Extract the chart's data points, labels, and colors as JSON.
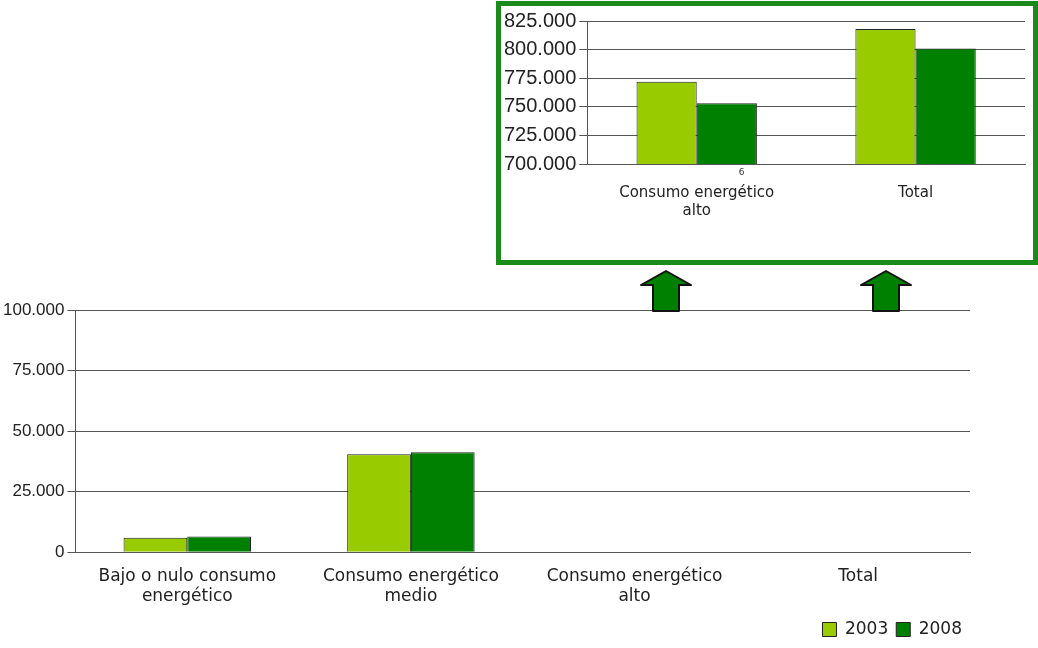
{
  "chart_data": [
    {
      "type": "bar",
      "categories": [
        "Bajo o nulo consumo energético",
        "Consumo energético medio",
        "Consumo energético alto",
        "Total"
      ],
      "series": [
        {
          "name": "2003",
          "color": "#99cc00",
          "values": [
            6000,
            40400,
            null,
            null
          ]
        },
        {
          "name": "2008",
          "color": "#008000",
          "values": [
            6500,
            41300,
            null,
            null
          ]
        }
      ],
      "ylim": [
        0,
        100000
      ],
      "yticks": [
        0,
        {
          "value": 25000,
          "label": "25.000"
        },
        {
          "value": 50000,
          "label": "50.000"
        },
        {
          "value": 75000,
          "label": "75.000"
        },
        {
          "value": 100000,
          "label": "100.000"
        }
      ],
      "grid": "y",
      "legend": "bottom right"
    },
    {
      "type": "bar",
      "categories": [
        "Consumo energético alto",
        "Total"
      ],
      "series": [
        {
          "color": "#99cc00",
          "values": [
            772000,
            818000
          ]
        },
        {
          "color": "#008000",
          "values": [
            753000,
            801000
          ]
        }
      ],
      "ylim": [
        700000,
        825000
      ],
      "yticks": [
        {
          "value": 700000,
          "label": "700.000"
        },
        {
          "value": 725000,
          "label": "725.000"
        },
        {
          "value": 750000,
          "label": "750.000"
        },
        {
          "value": 775000,
          "label": "775.000"
        },
        {
          "value": 800000,
          "label": "800.000"
        },
        {
          "value": 825000,
          "label": "825.000"
        }
      ],
      "grid": "y",
      "annotations": [
        "6"
      ]
    }
  ]
}
